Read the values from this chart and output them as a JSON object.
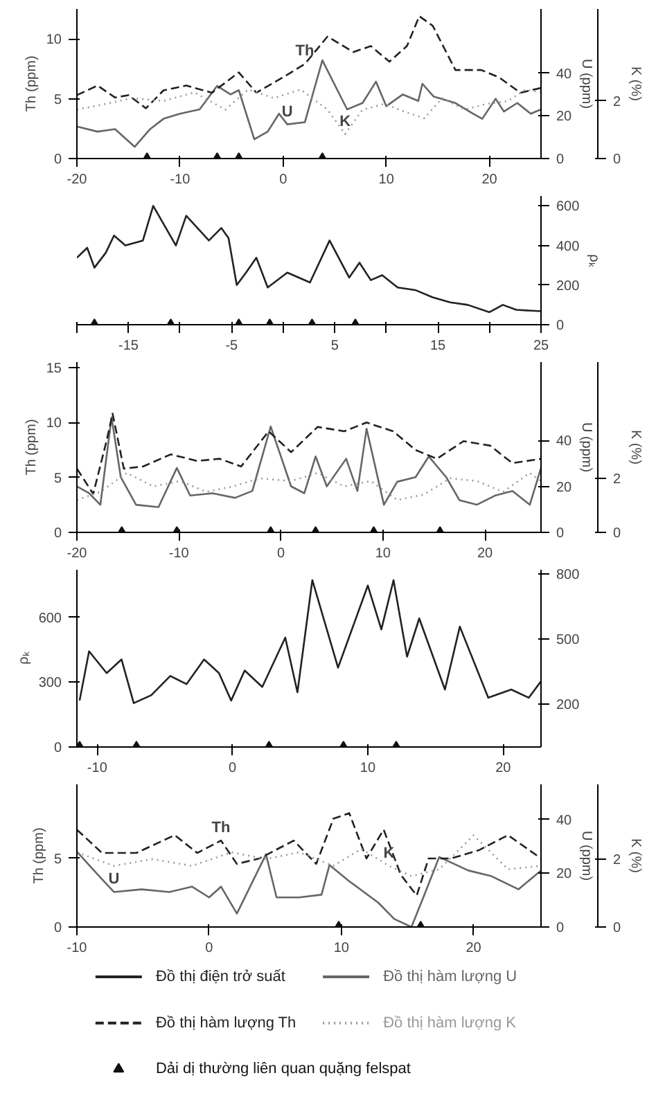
{
  "chart_data": [
    {
      "type": "line",
      "ylabel": "Th (ppm)",
      "y2label": "U (ppm)",
      "y3label": "K (%)",
      "xlim": [
        -20,
        25
      ],
      "xticks": [
        -20,
        -10,
        0,
        10,
        20
      ],
      "ylim": [
        0,
        12.5
      ],
      "yticks": [
        0,
        5,
        10
      ],
      "y2lim": [
        0,
        70
      ],
      "y2ticks": [
        0,
        20,
        40
      ],
      "y3lim": [
        0,
        5.2
      ],
      "y3ticks": [
        0,
        2
      ],
      "grid": false,
      "annotations": [
        {
          "text": "Th",
          "x": 2.1,
          "y": 7.9
        },
        {
          "text": "U",
          "x": 0.4,
          "y": 2.86
        },
        {
          "text": "K",
          "x": 6,
          "y": 2.04
        }
      ],
      "series": [
        {
          "type": "line",
          "axis": "y2",
          "color": "#666666",
          "line_style": "solid",
          "x": [
            -20,
            -18,
            -16.3,
            -14.4,
            -12.9,
            -11.6,
            -10,
            -8.1,
            -6.4,
            -5.1,
            -4.3,
            -2.8,
            -1.5,
            -0.4,
            0.4,
            2.1,
            3.8,
            6.2,
            7.7,
            9,
            10,
            11.6,
            13.1,
            13.5,
            14.6,
            16.7,
            18.4,
            19.3,
            20.6,
            21.4,
            22.7,
            24,
            25
          ],
          "values": [
            15,
            12.6,
            13.8,
            5.5,
            13.8,
            18.6,
            21,
            23,
            34,
            30,
            32,
            9,
            12.6,
            21,
            16,
            17,
            46,
            23,
            26,
            36,
            24.5,
            30,
            27,
            35,
            29,
            26,
            21,
            18.6,
            28,
            22,
            26,
            21,
            23
          ]
        },
        {
          "type": "line",
          "axis": "y",
          "color": "#222222",
          "line_style": "dashed",
          "x": [
            -20,
            -18,
            -16.3,
            -15,
            -13.3,
            -11.6,
            -9.4,
            -6.9,
            -4.3,
            -2.6,
            0,
            2.1,
            4.3,
            6.8,
            8.5,
            10.3,
            12,
            13.2,
            14.5,
            16.7,
            19.2,
            20.9,
            23,
            25
          ],
          "values": [
            5.3,
            6.1,
            5.1,
            5.3,
            4.2,
            5.7,
            6.1,
            5.5,
            7.2,
            5.5,
            6.8,
            7.9,
            10.2,
            8.9,
            9.4,
            8.1,
            9.4,
            11.9,
            11.1,
            7.4,
            7.4,
            6.8,
            5.5,
            5.9
          ]
        },
        {
          "type": "line",
          "axis": "y3",
          "color": "#999999",
          "line_style": "dotted",
          "x": [
            -20,
            -17.2,
            -14.7,
            -11.6,
            -8.6,
            -5.6,
            -3.4,
            -0.9,
            1.7,
            4.3,
            6,
            7.7,
            9.8,
            12,
            13.7,
            15.4,
            17.6,
            19.7,
            21.8,
            23.5,
            25
          ],
          "values": [
            1.7,
            1.9,
            2.1,
            2.0,
            2.3,
            1.7,
            2.4,
            2.1,
            2.4,
            1.7,
            0.85,
            1.7,
            1.9,
            1.6,
            1.4,
            2.1,
            1.7,
            1.9,
            2.0,
            2.4,
            2.3
          ]
        },
        {
          "type": "scatter",
          "axis": "y",
          "marker": "triangle",
          "color": "#111111",
          "x": [
            -13.2,
            -6.4,
            -4.3,
            3.8
          ],
          "values": [
            0,
            0,
            0,
            0
          ]
        }
      ]
    },
    {
      "type": "line",
      "y2label": "ρₖ",
      "xlim": [
        -20,
        25
      ],
      "xticks": [
        {
          "value": -20,
          "label": null
        },
        -15,
        {
          "value": -10,
          "label": null
        },
        -5,
        {
          "value": 0,
          "label": null
        },
        5,
        {
          "value": 10,
          "label": null
        },
        15,
        {
          "value": 20,
          "label": null
        },
        25
      ],
      "y2lim": [
        0,
        650
      ],
      "y2ticks": [
        0,
        200,
        400,
        600
      ],
      "grid": false,
      "series": [
        {
          "type": "line",
          "axis": "y2",
          "color": "#222222",
          "line_style": "solid",
          "x": [
            -20,
            -19,
            -18.3,
            -17.2,
            -16.4,
            -15.3,
            -13.6,
            -12.6,
            -10.4,
            -9.4,
            -7.2,
            -6,
            -5.3,
            -4.5,
            -3.6,
            -2.6,
            -1.5,
            0.4,
            2.6,
            4.5,
            6.4,
            7.4,
            8.5,
            9.6,
            11.1,
            12.8,
            14.5,
            16.2,
            17.9,
            20,
            21.3,
            22.6,
            25
          ],
          "values": [
            338,
            388,
            288,
            363,
            450,
            400,
            425,
            600,
            400,
            550,
            425,
            488,
            438,
            200,
            263,
            338,
            188,
            263,
            213,
            425,
            238,
            313,
            225,
            250,
            188,
            175,
            138,
            113,
            100,
            63,
            100,
            75,
            68
          ]
        },
        {
          "type": "scatter",
          "axis": "y2",
          "marker": "triangle",
          "color": "#111111",
          "x": [
            -18.3,
            -10.9,
            -4.3,
            -1.3,
            2.8,
            7.0
          ],
          "values": [
            0,
            0,
            0,
            0,
            0,
            0
          ]
        }
      ]
    },
    {
      "type": "line",
      "ylabel": "Th (ppm)",
      "y2label": "U (ppm)",
      "y3label": "K (%)",
      "xlim": [
        -20,
        25.5
      ],
      "xticks": [
        -20,
        -10,
        0,
        10,
        20
      ],
      "ylim": [
        0,
        15.5
      ],
      "yticks": [
        0,
        5,
        10,
        15
      ],
      "y2lim": [
        0,
        74
      ],
      "y2ticks": [
        0,
        20,
        40
      ],
      "y3lim": [
        0,
        6.3
      ],
      "y3ticks": [
        0,
        2
      ],
      "grid": false,
      "series": [
        {
          "type": "line",
          "axis": "y2",
          "color": "#666666",
          "line_style": "solid",
          "x": [
            -20,
            -18.8,
            -17.7,
            -16.6,
            -15.7,
            -14.2,
            -12,
            -10.2,
            -8.9,
            -6.7,
            -4.5,
            -2.8,
            -1,
            1,
            2.3,
            3.4,
            4.5,
            6.4,
            7.5,
            8.4,
            10.1,
            11.4,
            13.2,
            14.5,
            16.2,
            17.5,
            19.2,
            21,
            22.7,
            24.4,
            25.5
          ],
          "values": [
            20,
            17,
            12,
            50,
            24,
            12,
            11,
            28,
            16,
            17,
            15,
            18,
            46,
            20,
            17,
            33,
            20,
            32,
            18,
            45,
            12,
            22,
            24,
            33,
            24,
            14,
            12,
            16,
            18,
            12,
            28
          ]
        },
        {
          "type": "line",
          "axis": "y",
          "color": "#222222",
          "line_style": "dashed",
          "x": [
            -20,
            -18.4,
            -17.1,
            -16.5,
            -15.4,
            -13.5,
            -10.8,
            -8.2,
            -6,
            -3.9,
            -1.2,
            1,
            3.6,
            6.2,
            8.4,
            11,
            13.2,
            15.3,
            17.9,
            20.5,
            22.7,
            25.5
          ],
          "values": [
            5.8,
            3.5,
            8.3,
            10.8,
            5.8,
            6,
            7.1,
            6.5,
            6.7,
            6,
            9.2,
            7.3,
            9.6,
            9.2,
            10,
            9.2,
            7.5,
            6.7,
            8.3,
            7.9,
            6.3,
            6.7
          ]
        },
        {
          "type": "line",
          "axis": "y3",
          "color": "#999999",
          "line_style": "dotted",
          "x": [
            -20,
            -17.7,
            -15.1,
            -12.5,
            -9.9,
            -7.3,
            -4.7,
            -2.1,
            1,
            3.6,
            6.2,
            8.8,
            11.4,
            14,
            16.6,
            19.2,
            21.8,
            24.4,
            25.5
          ],
          "values": [
            1.2,
            1.5,
            2.2,
            1.7,
            1.9,
            1.5,
            1.7,
            2.0,
            1.9,
            2.2,
            1.7,
            1.9,
            1.2,
            1.4,
            2.0,
            1.9,
            1.5,
            2.2,
            1.9
          ]
        },
        {
          "type": "scatter",
          "axis": "y",
          "marker": "triangle",
          "color": "#111111",
          "x": [
            -15.6,
            -10.2,
            -1,
            3.4,
            9.1,
            15.6
          ],
          "values": [
            0,
            0,
            0,
            0,
            0,
            0
          ]
        }
      ]
    },
    {
      "type": "line",
      "ylabel": "ρₖ",
      "xlim": [
        -11.5,
        22.8
      ],
      "xticks": [
        -10,
        0,
        10,
        20
      ],
      "ylim": [
        0,
        820
      ],
      "yticks": [
        0,
        300,
        600
      ],
      "y2lim": [
        0,
        820
      ],
      "y2ticks": [
        200,
        500,
        800
      ],
      "grid": false,
      "series": [
        {
          "axis": "y",
          "name": "Đồ thị điện trở suất",
          "color": "#222222",
          "line_style": "solid",
          "x": [
            -11.3,
            -10.6,
            -9.3,
            -8.2,
            -7.3,
            -6,
            -4.6,
            -3.4,
            -2.1,
            -1,
            -0.1,
            0.9,
            2.2,
            3.9,
            4.8,
            5.9,
            7.8,
            10,
            11,
            11.9,
            12.9,
            13.8,
            15.7,
            16.8,
            18.9,
            20.6,
            21.9,
            22.8
          ],
          "values": [
            215,
            443,
            342,
            405,
            203,
            240,
            329,
            291,
            405,
            342,
            215,
            354,
            278,
            506,
            253,
            772,
            367,
            747,
            544,
            772,
            418,
            595,
            266,
            557,
            228,
            266,
            228,
            304
          ]
        },
        {
          "type": "scatter",
          "axis": "y",
          "marker": "triangle",
          "color": "#111111",
          "x": [
            -11.3,
            -7.1,
            2.7,
            8.2,
            12.1
          ],
          "values": [
            0,
            0,
            0,
            0,
            0
          ]
        }
      ]
    },
    {
      "type": "line",
      "ylabel": "Th (ppm)",
      "y2label": "U (ppm)",
      "y3label": "K (%)",
      "xlim": [
        -10,
        25.1
      ],
      "xticks": [
        -10,
        0,
        10,
        20
      ],
      "ylim": [
        0,
        10.4
      ],
      "yticks": [
        0,
        5
      ],
      "y2lim": [
        0,
        53
      ],
      "y2ticks": [
        0,
        20,
        40
      ],
      "y3lim": [
        0,
        4.2
      ],
      "y3ticks": [
        0,
        2
      ],
      "grid": false,
      "legend": "bottom",
      "annotations": [
        {
          "text": "Th",
          "x": 0.9,
          "y": 6.3
        },
        {
          "text": "U",
          "x": -7.2,
          "y": 2.55
        },
        {
          "text": "K",
          "x": 13.6,
          "y": 4.46
        }
      ],
      "series": [
        {
          "type": "line",
          "axis": "y2",
          "name": "Đồ thị hàm lượng U",
          "color": "#666666",
          "line_style": "solid",
          "x": [
            -10,
            -8.9,
            -7.2,
            -5.1,
            -3,
            -1.3,
            0,
            0.9,
            2.1,
            4.3,
            5.1,
            6.8,
            8.5,
            9.1,
            10.6,
            12.8,
            14,
            15.3,
            16.2,
            17.4,
            19.6,
            21.3,
            23.4,
            25.1
          ],
          "values": [
            28,
            22,
            13,
            14,
            13,
            15,
            11,
            15,
            5,
            27,
            11,
            11,
            12,
            23,
            17,
            9,
            3,
            0,
            11,
            26,
            21,
            19,
            14,
            21
          ]
        },
        {
          "type": "line",
          "axis": "y",
          "name": "Đồ thị hàm lượng Th",
          "color": "#222222",
          "line_style": "dashed",
          "x": [
            -10,
            -8.1,
            -5.5,
            -2.6,
            -0.9,
            0.9,
            2.1,
            3.8,
            6.4,
            8.1,
            9.4,
            10.6,
            11.9,
            13.2,
            14.5,
            15.7,
            16.6,
            18.3,
            20.4,
            22.6,
            25.1
          ],
          "values": [
            7.1,
            5.4,
            5.4,
            6.7,
            5.4,
            6.3,
            4.6,
            5,
            6.3,
            4.6,
            7.9,
            8.3,
            5,
            7.1,
            3.8,
            2.3,
            5,
            5,
            5.6,
            6.7,
            5
          ]
        },
        {
          "type": "line",
          "axis": "y3",
          "name": "Đồ thị hàm lượng K",
          "color": "#999999",
          "line_style": "dotted",
          "x": [
            -10,
            -7.2,
            -4.3,
            -1.3,
            1.7,
            4.3,
            6.8,
            9.4,
            11.5,
            13.6,
            15.3,
            17.4,
            20,
            22.6,
            25.1
          ],
          "values": [
            2.2,
            1.8,
            2,
            1.8,
            2.2,
            2,
            2.2,
            1.8,
            2.3,
            1.8,
            1.5,
            1.7,
            2.7,
            1.7,
            1.8
          ]
        },
        {
          "type": "scatter",
          "axis": "y",
          "name": "Dải dị thường liên quan quặng felspat",
          "marker": "triangle",
          "color": "#111111",
          "x": [
            9.8,
            16
          ],
          "values": [
            0,
            0
          ]
        }
      ]
    }
  ]
}
